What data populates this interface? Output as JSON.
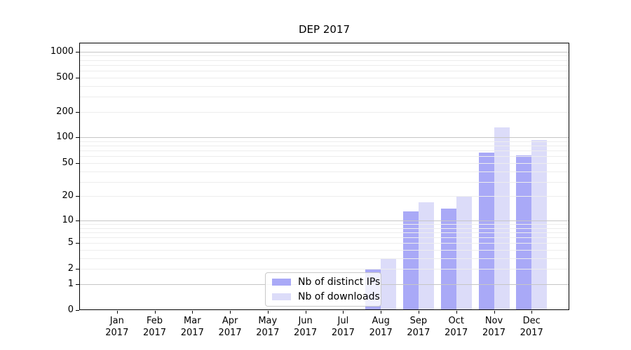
{
  "chart_data": {
    "type": "bar",
    "title": "DEP 2017",
    "categories": [
      "Jan 2017",
      "Feb 2017",
      "Mar 2017",
      "Apr 2017",
      "May 2017",
      "Jun 2017",
      "Jul 2017",
      "Aug 2017",
      "Sep 2017",
      "Oct 2017",
      "Nov 2017",
      "Dec 2017"
    ],
    "series": [
      {
        "name": "Nb of distinct IPs",
        "color": "#a9a9f7",
        "values": [
          0,
          0,
          0,
          0,
          0,
          0,
          0,
          2,
          13,
          14,
          67,
          61
        ]
      },
      {
        "name": "Nb of downloads",
        "color": "#dcdcf9",
        "values": [
          0,
          0,
          0,
          0,
          0,
          0,
          0,
          3,
          17,
          20,
          130,
          93
        ]
      }
    ],
    "xlabel": "",
    "ylabel": "",
    "y_scale": "log1p",
    "y_ticks": [
      0,
      1,
      2,
      5,
      10,
      20,
      50,
      100,
      200,
      500,
      1000
    ],
    "ylim": [
      0,
      1270
    ],
    "grid": "horizontal",
    "grid_major_color": "#c6c6c6",
    "grid_minor_color": "#ededed",
    "legend_position": "lower-center",
    "background_color": "#ffffff",
    "axis_color": "#000000"
  }
}
